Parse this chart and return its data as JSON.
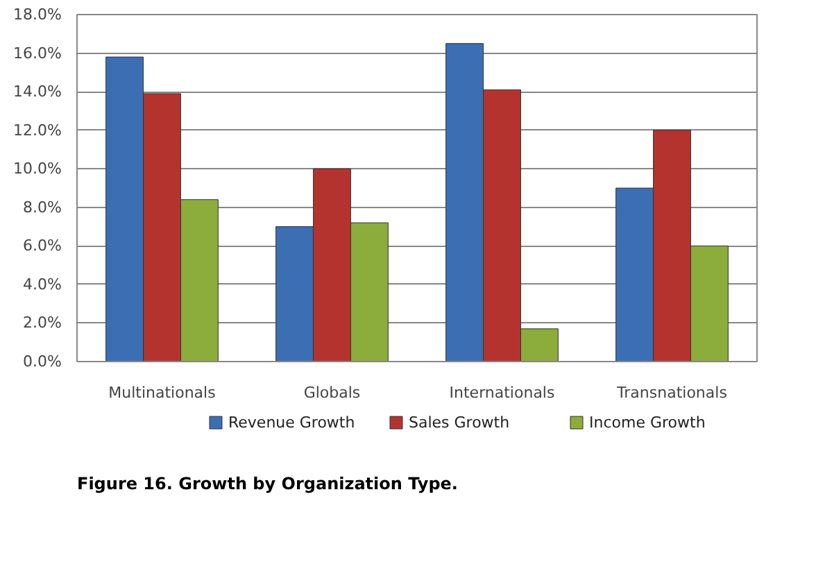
{
  "chart_data": {
    "type": "bar",
    "categories": [
      "Multinationals",
      "Globals",
      "Internationals",
      "Transnationals"
    ],
    "series": [
      {
        "name": "Revenue Growth",
        "color": "#3c6eb4",
        "values": [
          15.8,
          7.0,
          16.5,
          9.0
        ]
      },
      {
        "name": "Sales Growth",
        "color": "#b5332f",
        "values": [
          13.9,
          10.0,
          14.1,
          12.0
        ]
      },
      {
        "name": "Income Growth",
        "color": "#8cac3c",
        "values": [
          8.4,
          7.2,
          1.7,
          6.0
        ]
      }
    ],
    "ylim": [
      0,
      18
    ],
    "yticks": [
      {
        "value": 0,
        "label": "0.0%"
      },
      {
        "value": 2,
        "label": "2.0%"
      },
      {
        "value": 4,
        "label": "4.0%"
      },
      {
        "value": 6,
        "label": "6.0%"
      },
      {
        "value": 8,
        "label": "8.0%"
      },
      {
        "value": 10,
        "label": "10.0%"
      },
      {
        "value": 12,
        "label": "12.0%"
      },
      {
        "value": 14,
        "label": "14.0%"
      },
      {
        "value": 16,
        "label": "16.0%"
      },
      {
        "value": 18,
        "label": "18.0%"
      }
    ],
    "grid": "y",
    "legend": "bottom",
    "annotations": [
      "Figure 16. Growth by Organization Type."
    ]
  }
}
